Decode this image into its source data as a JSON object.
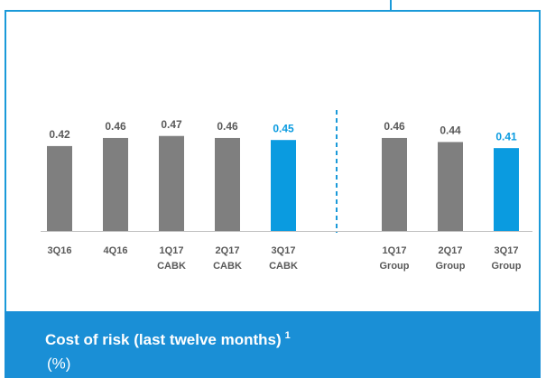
{
  "chart_data": {
    "type": "bar",
    "title": "Cost of risk (last twelve months)",
    "title_note": "1",
    "subtitle": "(%)",
    "categories": [
      [
        "3Q16"
      ],
      [
        "4Q16"
      ],
      [
        "1Q17",
        "CABK"
      ],
      [
        "2Q17",
        "CABK"
      ],
      [
        "3Q17",
        "CABK"
      ],
      [
        "1Q17",
        "Group"
      ],
      [
        "2Q17",
        "Group"
      ],
      [
        "3Q17",
        "Group"
      ]
    ],
    "values": [
      0.42,
      0.46,
      0.47,
      0.46,
      0.45,
      0.46,
      0.44,
      0.41
    ],
    "colors": [
      "#7f7f7f",
      "#7f7f7f",
      "#7f7f7f",
      "#7f7f7f",
      "#0a9be0",
      "#7f7f7f",
      "#7f7f7f",
      "#0a9be0"
    ],
    "ylim": [
      0,
      1
    ]
  }
}
